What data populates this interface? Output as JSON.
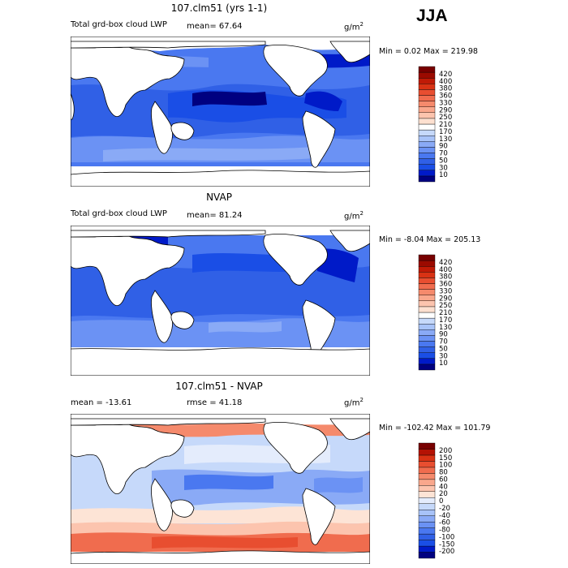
{
  "season": "JJA",
  "colors": {
    "seq": [
      "#000080",
      "#001ac8",
      "#1a4ee6",
      "#3060e6",
      "#4a78f0",
      "#6b92f4",
      "#8aaaf6",
      "#a8c3f8",
      "#c6d9fa",
      "#ffffff",
      "#fde0d0",
      "#fcc4ae",
      "#f9a78c",
      "#f58a6c",
      "#f06c4e",
      "#e84e30",
      "#d93214",
      "#c01a06",
      "#9b0a00",
      "#780000"
    ],
    "diff": [
      "#000080",
      "#001ac8",
      "#1a4ee6",
      "#3060e6",
      "#4a78f0",
      "#6b92f4",
      "#8aaaf6",
      "#a8c3f8",
      "#c6d9fa",
      "#e4ecfc",
      "#fde4d6",
      "#fcc4ae",
      "#f9a78c",
      "#f58a6c",
      "#f06c4e",
      "#e84e30",
      "#d93214",
      "#b41204",
      "#780000"
    ]
  },
  "panels": [
    {
      "id": "model",
      "title": "107.clm51 (yrs 1-1)",
      "subtitle": "Total grd-box cloud LWP",
      "mean_text": "mean=  67.64",
      "units": "g/m",
      "units_exp": "2",
      "minmax_text": "Min =   0.02 Max = 219.98",
      "colorbar_labels": [
        "420",
        "400",
        "380",
        "360",
        "330",
        "290",
        "250",
        "210",
        "170",
        "130",
        "90",
        "70",
        "50",
        "30",
        "10"
      ]
    },
    {
      "id": "obs",
      "title": "NVAP",
      "subtitle": "Total grd-box cloud LWP",
      "mean_text": "mean=  81.24",
      "units": "g/m",
      "units_exp": "2",
      "minmax_text": "Min =  -8.04 Max = 205.13",
      "colorbar_labels": [
        "420",
        "400",
        "380",
        "360",
        "330",
        "290",
        "250",
        "210",
        "170",
        "130",
        "90",
        "70",
        "50",
        "30",
        "10"
      ]
    },
    {
      "id": "diff",
      "title": "107.clm51 - NVAP",
      "subtitle": "mean = -13.61",
      "mean_text": "rmse =  41.18",
      "units": "g/m",
      "units_exp": "2",
      "minmax_text": "Min = -102.42 Max = 101.79",
      "colorbar_labels": [
        "200",
        "150",
        "100",
        "80",
        "60",
        "40",
        "20",
        "0",
        "-20",
        "-40",
        "-60",
        "-80",
        "-100",
        "-150",
        "-200"
      ]
    }
  ]
}
